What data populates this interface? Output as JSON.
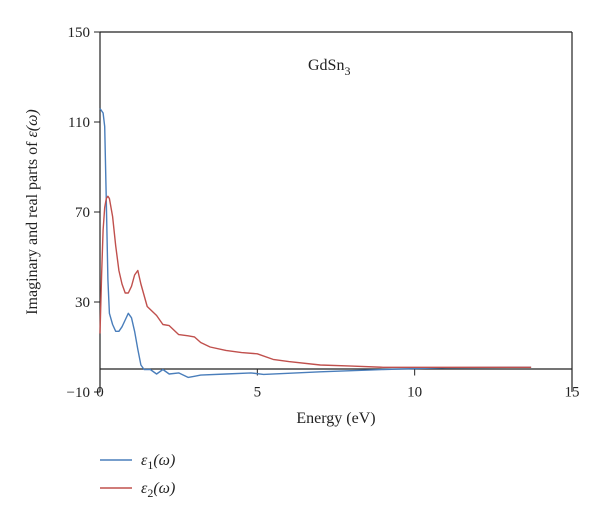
{
  "chart_data": {
    "type": "line",
    "annotation": "GdSn",
    "annotation_sub": "3",
    "xlabel": "Energy (eV)",
    "ylabel_prefix": "Imaginary and real parts of ",
    "ylabel_symbol": "ε(ω)",
    "xlim": [
      0,
      15
    ],
    "ylim": [
      -10,
      150
    ],
    "xticks": [
      "0",
      "5",
      "10",
      "15"
    ],
    "yticks": [
      "−10",
      "30",
      "70",
      "110",
      "150"
    ],
    "xtick_values": [
      0,
      5,
      10,
      15
    ],
    "ytick_values": [
      -10,
      30,
      70,
      110,
      150
    ],
    "grid": false,
    "legend_position": "bottom-left",
    "series": [
      {
        "name": "ε1(ω)",
        "name_main": "ε",
        "name_sub": "1",
        "name_tail": "(ω)",
        "color": "#4a7ebb",
        "x": [
          0.0,
          0.1,
          0.15,
          0.2,
          0.25,
          0.3,
          0.4,
          0.5,
          0.6,
          0.7,
          0.8,
          0.9,
          1.0,
          1.1,
          1.2,
          1.3,
          1.4,
          1.6,
          1.8,
          2.0,
          2.2,
          2.5,
          2.8,
          3.0,
          3.2,
          4.0,
          4.8,
          5.2,
          7.0,
          9.0,
          11.0,
          13.0,
          13.7
        ],
        "y": [
          116,
          114,
          108,
          75,
          40,
          25,
          20,
          17,
          17,
          19,
          22,
          25,
          23,
          17,
          9,
          2,
          0,
          0,
          -2,
          0,
          -2,
          -1.5,
          -3.5,
          -3,
          -2.5,
          -2,
          -1.5,
          -2.2,
          -1,
          0,
          0.8,
          1,
          1
        ]
      },
      {
        "name": "ε2(ω)",
        "name_main": "ε",
        "name_sub": "2",
        "name_tail": "(ω)",
        "color": "#c0504d",
        "x": [
          0.0,
          0.05,
          0.1,
          0.15,
          0.2,
          0.25,
          0.3,
          0.4,
          0.5,
          0.6,
          0.7,
          0.8,
          0.9,
          1.0,
          1.1,
          1.2,
          1.3,
          1.5,
          1.8,
          2.0,
          2.2,
          2.5,
          2.8,
          3.0,
          3.2,
          3.5,
          4.0,
          4.5,
          5.0,
          5.5,
          6.0,
          7.0,
          8.0,
          9.0,
          10.0,
          11.0,
          12.0,
          13.0,
          13.7
        ],
        "y": [
          16,
          42,
          62,
          72,
          76,
          77,
          76,
          68,
          55,
          44,
          38,
          34,
          34,
          37,
          42,
          44,
          38,
          28,
          24,
          20,
          19.5,
          15.5,
          15,
          14.5,
          12,
          10,
          8.5,
          7.5,
          7,
          4.5,
          3.5,
          2,
          1.5,
          1,
          1,
          1,
          1,
          1,
          1
        ]
      }
    ]
  }
}
